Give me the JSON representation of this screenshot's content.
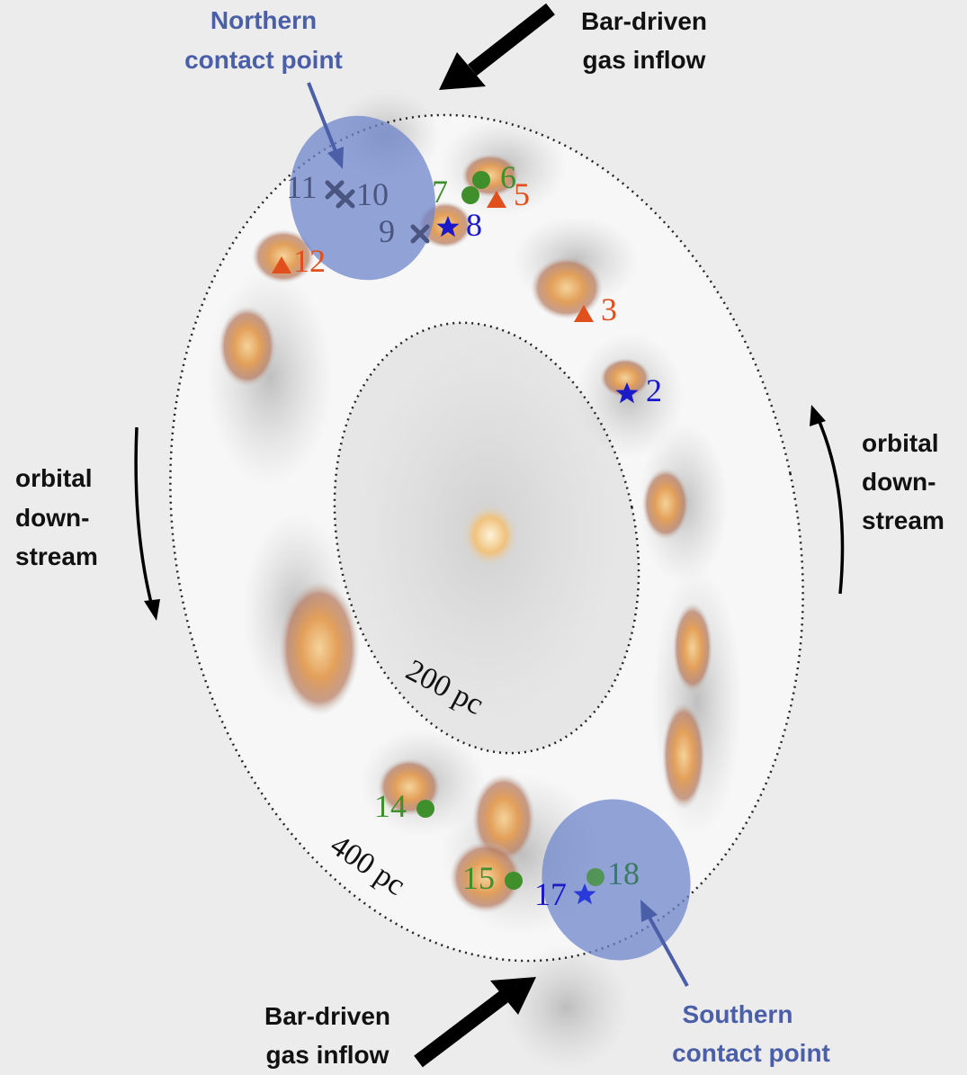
{
  "colors": {
    "background": "#ececec",
    "ring_fill": "#f6f6f6",
    "contact_zone": "#6f86cc",
    "contact_label": "#4a5fa8",
    "triangle": "#e0501c",
    "circle": "#3f8f2c",
    "star": "#1a1ac8",
    "cross": "#4a5580",
    "gas_dense": "#e3a05a",
    "gas_faint": "#c9c9c9"
  },
  "annotations": {
    "north_contact": [
      "Northern",
      "contact point"
    ],
    "south_contact": [
      "Southern",
      "contact point"
    ],
    "inflow_top": [
      "Bar-driven",
      "gas inflow"
    ],
    "inflow_bottom": [
      "Bar-driven",
      "gas inflow"
    ],
    "orbital_left": [
      "orbital",
      "down-",
      "stream"
    ],
    "orbital_right": [
      "orbital",
      "down-",
      "stream"
    ],
    "scale_inner": "200 pc",
    "scale_outer": "400 pc"
  },
  "markers": [
    {
      "id": "2",
      "symbol": "star",
      "label": "2"
    },
    {
      "id": "3",
      "symbol": "triangle",
      "label": "3"
    },
    {
      "id": "5",
      "symbol": "triangle",
      "label": "5"
    },
    {
      "id": "6",
      "symbol": "circle",
      "label": "6"
    },
    {
      "id": "7",
      "symbol": "circle",
      "label": "7"
    },
    {
      "id": "8",
      "symbol": "star",
      "label": "8"
    },
    {
      "id": "9",
      "symbol": "cross",
      "label": "9"
    },
    {
      "id": "10",
      "symbol": "cross",
      "label": "10"
    },
    {
      "id": "11",
      "symbol": "cross",
      "label": "11"
    },
    {
      "id": "12",
      "symbol": "triangle",
      "label": "12"
    },
    {
      "id": "14",
      "symbol": "circle",
      "label": "14"
    },
    {
      "id": "15",
      "symbol": "circle",
      "label": "15"
    },
    {
      "id": "17",
      "symbol": "star",
      "label": "17"
    },
    {
      "id": "18",
      "symbol": "circle",
      "label": "18"
    }
  ]
}
